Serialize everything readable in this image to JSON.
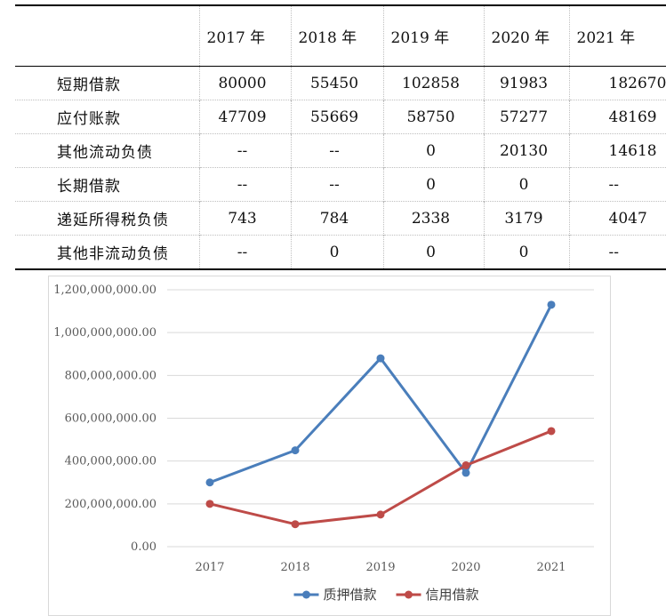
{
  "table": {
    "headers": [
      "",
      "2017 年",
      "2018 年",
      "2019 年",
      "2020 年",
      "2021 年"
    ],
    "rows": [
      {
        "label": "短期借款",
        "values": [
          "80000",
          "55450",
          "102858",
          "91983",
          "182670"
        ]
      },
      {
        "label": "应付账款",
        "values": [
          "47709",
          "55669",
          "58750",
          "57277",
          "48169"
        ]
      },
      {
        "label": "其他流动负债",
        "values": [
          "--",
          "--",
          "0",
          "20130",
          "14618"
        ]
      },
      {
        "label": "长期借款",
        "values": [
          "--",
          "--",
          "0",
          "0",
          "--"
        ]
      },
      {
        "label": "递延所得税负债",
        "values": [
          "743",
          "784",
          "2338",
          "3179",
          "4047"
        ]
      },
      {
        "label": "其他非流动负债",
        "values": [
          "--",
          "0",
          "0",
          "0",
          "--"
        ]
      }
    ]
  },
  "chart_data": {
    "type": "line",
    "title": "",
    "xlabel": "",
    "ylabel": "",
    "categories": [
      "2017",
      "2018",
      "2019",
      "2020",
      "2021"
    ],
    "ylim": [
      0,
      1200000000
    ],
    "yticks": [
      0,
      200000000,
      400000000,
      600000000,
      800000000,
      1000000000,
      1200000000
    ],
    "ytick_labels": [
      "0.00",
      "200,000,000.00",
      "400,000,000.00",
      "600,000,000.00",
      "800,000,000.00",
      "1,000,000,000.00",
      "1,200,000,000.00"
    ],
    "grid": true,
    "legend": "bottom",
    "series": [
      {
        "name": "质押借款",
        "color": "#4a7ebb",
        "values": [
          300000000,
          450000000,
          880000000,
          345000000,
          1130000000
        ]
      },
      {
        "name": "信用借款",
        "color": "#be4b48",
        "values": [
          200000000,
          105000000,
          150000000,
          380000000,
          540000000
        ]
      }
    ]
  }
}
